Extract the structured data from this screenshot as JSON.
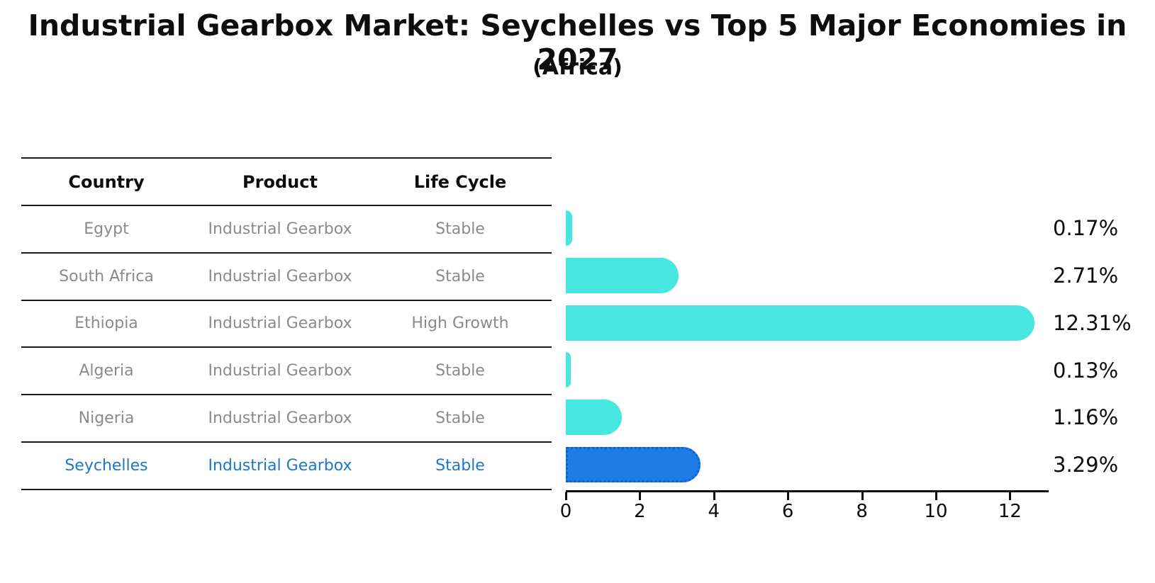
{
  "title": "Industrial Gearbox Market: Seychelles vs Top 5 Major Economies in 2027",
  "subtitle": "(Africa)",
  "table": {
    "headers": [
      "Country",
      "Product",
      "Life Cycle"
    ],
    "rows": [
      {
        "country": "Egypt",
        "product": "Industrial Gearbox",
        "life_cycle": "Stable",
        "highlight": false
      },
      {
        "country": "South Africa",
        "product": "Industrial Gearbox",
        "life_cycle": "Stable",
        "highlight": false
      },
      {
        "country": "Ethiopia",
        "product": "Industrial Gearbox",
        "life_cycle": "High Growth",
        "highlight": false
      },
      {
        "country": "Algeria",
        "product": "Industrial Gearbox",
        "life_cycle": "Stable",
        "highlight": false
      },
      {
        "country": "Nigeria",
        "product": "Industrial Gearbox",
        "life_cycle": "Stable",
        "highlight": false
      },
      {
        "country": "Seychelles",
        "product": "Industrial Gearbox",
        "life_cycle": "Stable",
        "highlight": true
      }
    ]
  },
  "chart_data": {
    "type": "bar",
    "orientation": "horizontal",
    "categories": [
      "Egypt",
      "South Africa",
      "Ethiopia",
      "Algeria",
      "Nigeria",
      "Seychelles"
    ],
    "values": [
      0.17,
      2.71,
      12.31,
      0.13,
      1.16,
      3.29
    ],
    "value_labels": [
      "0.17%",
      "2.71%",
      "12.31%",
      "0.13%",
      "1.16%",
      "3.29%"
    ],
    "highlight_index": 5,
    "x_ticks": [
      0,
      2,
      4,
      6,
      8,
      10,
      12
    ],
    "xlim": [
      0,
      13
    ],
    "xlabel": "",
    "ylabel": "",
    "grid": false,
    "legend": false
  },
  "colors": {
    "bar_default": "#47e6e1",
    "bar_highlight": "#1e7ce8",
    "bar_highlight_border": "#0b5fd0",
    "highlight_text": "#1e76c8",
    "table_text": "#8a8a8a",
    "axis": "#0d0d0d"
  }
}
